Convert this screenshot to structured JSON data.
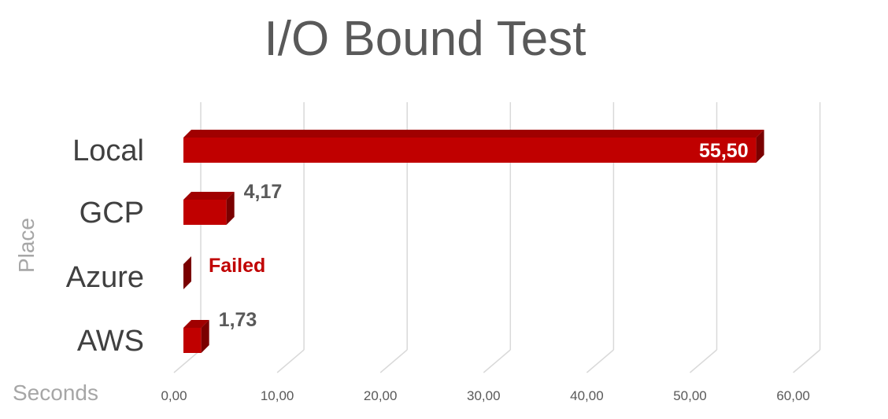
{
  "chart_data": {
    "type": "bar",
    "orientation": "horizontal",
    "style": "3d",
    "title": "I/O Bound Test",
    "xlabel": "Seconds",
    "ylabel": "Place",
    "categories": [
      "Local",
      "GCP",
      "Azure",
      "AWS"
    ],
    "values": [
      55.5,
      4.17,
      null,
      1.73
    ],
    "data_labels": [
      "55,50",
      "4,17",
      "Failed",
      "1,73"
    ],
    "xlim": [
      0,
      60
    ],
    "x_ticks": [
      "0,00",
      "10,00",
      "20,00",
      "30,00",
      "40,00",
      "50,00",
      "60,00"
    ],
    "grid": true,
    "legend": "none",
    "colors": {
      "bar_front": "#c00000",
      "bar_top": "#a00000",
      "bar_side": "#7a0000",
      "grid": "#d9d9d9",
      "label_dark": "#595959",
      "label_failed": "#c00000",
      "label_inside": "#ffffff",
      "axis_title": "#a6a6a6"
    }
  }
}
